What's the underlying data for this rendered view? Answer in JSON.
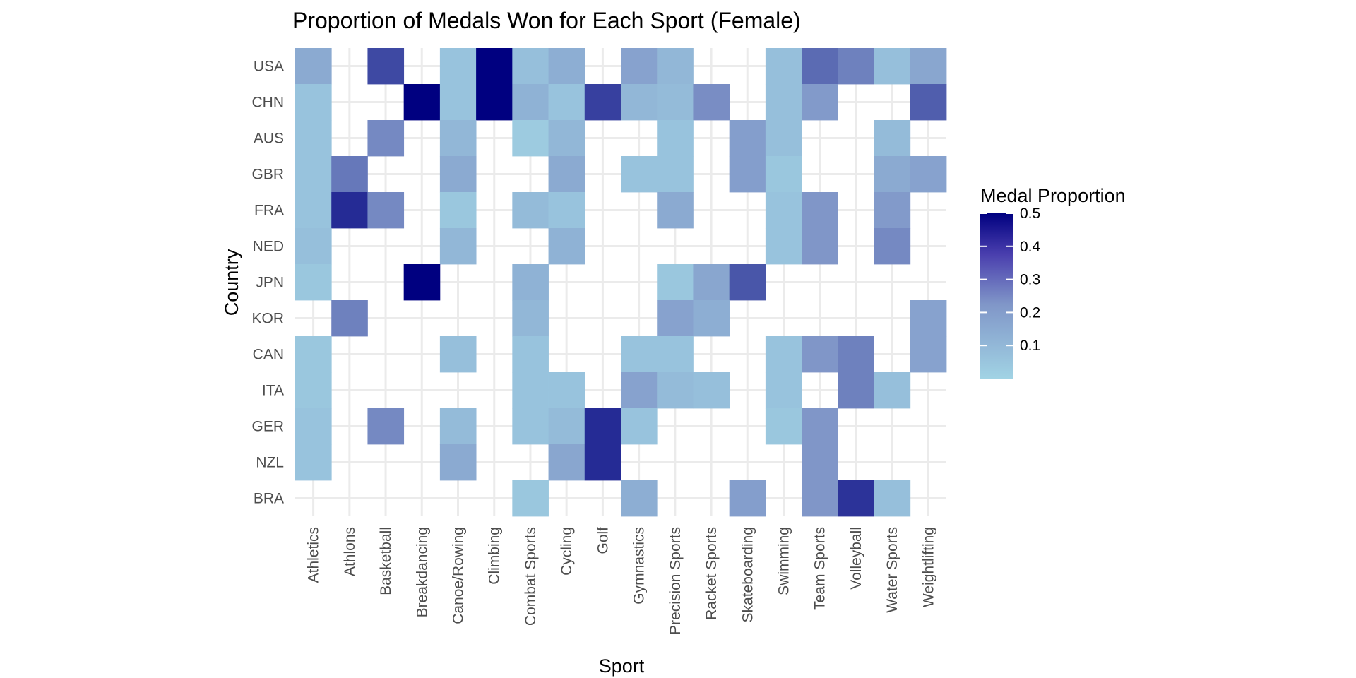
{
  "chart_data": {
    "type": "heatmap",
    "title": "Proportion of Medals Won for Each Sport (Female)",
    "xlabel": "Sport",
    "ylabel": "Country",
    "x": [
      "Athletics",
      "Athlons",
      "Basketball",
      "Breakdancing",
      "Canoe/Rowing",
      "Climbing",
      "Combat Sports",
      "Cycling",
      "Golf",
      "Gymnastics",
      "Precision Sports",
      "Racket Sports",
      "Skateboarding",
      "Swimming",
      "Team Sports",
      "Volleyball",
      "Water Sports",
      "Weightlifting"
    ],
    "y": [
      "USA",
      "CHN",
      "AUS",
      "GBR",
      "FRA",
      "NED",
      "JPN",
      "KOR",
      "CAN",
      "ITA",
      "GER",
      "NZL",
      "BRA"
    ],
    "values": [
      [
        0.1,
        null,
        0.33,
        null,
        0.04,
        0.5,
        0.05,
        0.09,
        null,
        0.12,
        0.07,
        null,
        null,
        0.05,
        0.25,
        0.2,
        0.05,
        0.11
      ],
      [
        0.04,
        null,
        null,
        0.5,
        0.04,
        0.5,
        0.08,
        0.04,
        0.35,
        0.07,
        0.06,
        0.17,
        null,
        0.05,
        0.14,
        null,
        null,
        0.28
      ],
      [
        0.04,
        null,
        0.18,
        null,
        0.07,
        null,
        0.02,
        0.07,
        null,
        null,
        0.04,
        null,
        0.13,
        0.05,
        null,
        null,
        0.06,
        null
      ],
      [
        0.04,
        0.22,
        null,
        null,
        0.1,
        null,
        null,
        0.1,
        null,
        0.04,
        0.04,
        null,
        0.13,
        0.03,
        null,
        null,
        0.1,
        0.12
      ],
      [
        0.04,
        0.4,
        0.18,
        null,
        0.03,
        null,
        0.06,
        0.04,
        null,
        null,
        0.1,
        null,
        null,
        0.04,
        0.15,
        null,
        0.14,
        null
      ],
      [
        0.05,
        null,
        null,
        null,
        0.07,
        null,
        null,
        0.08,
        null,
        null,
        null,
        null,
        null,
        0.04,
        0.15,
        null,
        0.18,
        null
      ],
      [
        0.03,
        null,
        null,
        0.5,
        null,
        null,
        0.08,
        null,
        null,
        null,
        0.03,
        0.11,
        0.3,
        null,
        null,
        null,
        null,
        null
      ],
      [
        null,
        0.2,
        null,
        null,
        null,
        null,
        0.07,
        null,
        null,
        null,
        0.12,
        0.09,
        null,
        null,
        null,
        null,
        null,
        0.12
      ],
      [
        0.03,
        null,
        null,
        null,
        0.05,
        null,
        0.04,
        null,
        null,
        0.04,
        0.04,
        null,
        null,
        0.04,
        0.15,
        0.2,
        null,
        0.12
      ],
      [
        0.03,
        null,
        null,
        null,
        null,
        null,
        0.04,
        0.04,
        null,
        0.12,
        0.06,
        0.05,
        null,
        0.04,
        null,
        0.2,
        0.05,
        null
      ],
      [
        0.04,
        null,
        0.18,
        null,
        0.06,
        null,
        0.04,
        0.06,
        0.4,
        0.04,
        null,
        null,
        null,
        0.03,
        0.15,
        null,
        null,
        null
      ],
      [
        0.04,
        null,
        null,
        null,
        0.1,
        null,
        null,
        0.11,
        0.4,
        null,
        null,
        null,
        null,
        null,
        0.15,
        null,
        null,
        null
      ],
      [
        null,
        null,
        null,
        null,
        null,
        null,
        0.03,
        null,
        null,
        0.09,
        null,
        null,
        0.13,
        null,
        0.15,
        0.38,
        0.05,
        null
      ]
    ],
    "legend": {
      "title": "Medal Proportion",
      "ticks": [
        0.1,
        0.2,
        0.3,
        0.4,
        0.5
      ],
      "tick_labels": [
        "0.1",
        "0.2",
        "0.3",
        "0.4",
        "0.5"
      ],
      "placement": "right"
    },
    "color_scale": {
      "low": "#a1d3e4",
      "mid": "#8096c8",
      "high": "#000080",
      "min": 0,
      "max": 0.5
    },
    "grid": true
  }
}
